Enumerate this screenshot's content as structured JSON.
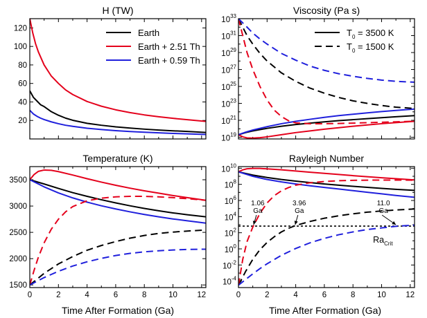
{
  "figure": {
    "xlabel_left": "Time After Formation (Ga)",
    "xlabel_right": "Time After Formation (Ga)"
  },
  "chart_data": [
    {
      "id": "H",
      "type": "line",
      "title": "H (TW)",
      "xlabel": "",
      "ylabel": "",
      "xlim": [
        0,
        12.3
      ],
      "ylim": [
        0,
        130
      ],
      "xticks": [
        0,
        2,
        4,
        6,
        8,
        10,
        12
      ],
      "yticks": [
        20,
        40,
        60,
        80,
        100,
        120
      ],
      "yscale": "linear",
      "grid": false,
      "legend_position": "top-right",
      "legend": [
        {
          "label": "Earth",
          "color": "#000000",
          "dash": "solid"
        },
        {
          "label": "Earth + 2.51 Th",
          "color": "#e4001b",
          "dash": "solid"
        },
        {
          "label": "Earth + 0.59 Th",
          "color": "#1f1fdc",
          "dash": "solid"
        }
      ],
      "series": [
        {
          "name": "Earth",
          "color": "#000000",
          "dash": "solid",
          "x": [
            0,
            0.25,
            0.5,
            0.75,
            1,
            1.5,
            2,
            2.5,
            3,
            4,
            5,
            6,
            7,
            8,
            9,
            10,
            11,
            12.3
          ],
          "y": [
            52,
            45,
            41,
            37,
            35,
            29.5,
            25.6,
            22.5,
            20.2,
            16.9,
            14.8,
            13.1,
            11.8,
            10.6,
            9.6,
            8.8,
            8.1,
            7
          ]
        },
        {
          "name": "Earth + 2.51 Th",
          "color": "#e4001b",
          "dash": "solid",
          "x": [
            0,
            0.2,
            0.4,
            0.6,
            0.8,
            1,
            1.5,
            2,
            2.5,
            3,
            4,
            5,
            6,
            7,
            8,
            9,
            10,
            11,
            12.3
          ],
          "y": [
            130,
            115,
            103,
            94,
            87,
            80,
            68,
            60,
            53,
            48,
            40.5,
            35.4,
            31.5,
            28.5,
            26,
            24,
            22.3,
            20.8,
            19
          ]
        },
        {
          "name": "Earth + 0.59 Th",
          "color": "#1f1fdc",
          "dash": "solid",
          "x": [
            0,
            0.25,
            0.5,
            0.75,
            1,
            1.5,
            2,
            2.5,
            3,
            4,
            5,
            6,
            7,
            8,
            9,
            10,
            11,
            12.3
          ],
          "y": [
            31,
            27,
            24.5,
            22.5,
            21,
            18.5,
            16.5,
            14.8,
            13.6,
            11.6,
            10.2,
            9,
            8,
            7.3,
            6.6,
            6,
            5.5,
            4.9
          ]
        }
      ]
    },
    {
      "id": "Viscosity",
      "type": "line",
      "title": "Viscosity (Pa s)",
      "xlabel": "",
      "ylabel": "",
      "xlim": [
        0,
        12.3
      ],
      "ylim": [
        18.8,
        33
      ],
      "yscale": "log10",
      "xticks": [
        0,
        2,
        4,
        6,
        8,
        10,
        12
      ],
      "yticks": [
        19,
        21,
        23,
        25,
        27,
        29,
        31,
        33
      ],
      "ytick_labels": [
        [
          "10",
          "19"
        ],
        [
          "10",
          "21"
        ],
        [
          "10",
          "23"
        ],
        [
          "10",
          "25"
        ],
        [
          "10",
          "27"
        ],
        [
          "10",
          "29"
        ],
        [
          "10",
          "31"
        ],
        [
          "10",
          "33"
        ]
      ],
      "grid": false,
      "legend_position": "top-right",
      "legend": [
        {
          "label_main": "T",
          "label_sub": "0",
          "label_rest": " = 3500 K",
          "color": "#000000",
          "dash": "solid"
        },
        {
          "label_main": "T",
          "label_sub": "0",
          "label_rest": " = 1500 K",
          "color": "#000000",
          "dash": "dashed"
        }
      ],
      "series": [
        {
          "color": "#000000",
          "dash": "solid",
          "x": [
            0,
            0.5,
            1,
            2,
            3,
            4,
            5,
            6,
            7,
            8,
            9,
            10,
            11,
            12.3
          ],
          "y": [
            19.3,
            19.55,
            19.75,
            20.05,
            20.3,
            20.5,
            20.67,
            20.82,
            20.96,
            21.08,
            21.2,
            21.31,
            21.42,
            21.55
          ]
        },
        {
          "color": "#e4001b",
          "dash": "solid",
          "x": [
            0,
            0.3,
            0.6,
            1,
            1.5,
            2,
            3,
            4,
            5,
            6,
            7,
            8,
            9,
            10,
            11,
            12.3
          ],
          "y": [
            19.3,
            19.05,
            18.92,
            18.9,
            18.95,
            19.05,
            19.3,
            19.55,
            19.75,
            19.95,
            20.13,
            20.3,
            20.45,
            20.6,
            20.73,
            20.88
          ]
        },
        {
          "color": "#1f1fdc",
          "dash": "solid",
          "x": [
            0,
            0.5,
            1,
            2,
            3,
            4,
            5,
            6,
            7,
            8,
            9,
            10,
            11,
            12.3
          ],
          "y": [
            19.3,
            19.6,
            19.85,
            20.25,
            20.6,
            20.88,
            21.12,
            21.35,
            21.55,
            21.72,
            21.88,
            22.03,
            22.17,
            22.33
          ]
        },
        {
          "color": "#000000",
          "dash": "dashed",
          "x": [
            0,
            0.3,
            0.6,
            1,
            1.5,
            2,
            3,
            4,
            5,
            6,
            7,
            8,
            9,
            10,
            11,
            12.3
          ],
          "y": [
            33,
            32,
            31,
            30,
            28.9,
            28,
            26.6,
            25.6,
            24.8,
            24.2,
            23.7,
            23.3,
            23.0,
            22.75,
            22.55,
            22.4
          ]
        },
        {
          "color": "#e4001b",
          "dash": "dashed",
          "x": [
            0,
            0.3,
            0.6,
            1,
            1.5,
            2,
            2.5,
            3,
            3.5,
            4,
            5,
            6,
            7,
            8,
            9,
            10,
            11,
            12.3
          ],
          "y": [
            33,
            31,
            29,
            27,
            25,
            23.4,
            22.2,
            21.45,
            20.95,
            20.7,
            20.6,
            20.6,
            20.63,
            20.67,
            20.72,
            20.77,
            20.82,
            20.9
          ]
        },
        {
          "color": "#1f1fdc",
          "dash": "dashed",
          "x": [
            0,
            0.3,
            0.6,
            1,
            1.5,
            2,
            3,
            4,
            5,
            6,
            7,
            8,
            9,
            10,
            11,
            12.3
          ],
          "y": [
            33,
            32.5,
            32,
            31.3,
            30.6,
            30,
            28.9,
            28.1,
            27.4,
            26.9,
            26.5,
            26.2,
            25.95,
            25.75,
            25.6,
            25.5
          ]
        }
      ]
    },
    {
      "id": "Temperature",
      "type": "line",
      "title": "Temperature (K)",
      "xlabel": "Time After Formation (Ga)",
      "ylabel": "",
      "xlim": [
        0,
        12.3
      ],
      "ylim": [
        1450,
        3750
      ],
      "xticks": [
        0,
        2,
        4,
        6,
        8,
        10,
        12
      ],
      "yticks": [
        1500,
        2000,
        2500,
        3000,
        3500
      ],
      "yscale": "linear",
      "grid": false,
      "series": [
        {
          "color": "#000000",
          "dash": "solid",
          "x": [
            0,
            1,
            2,
            3,
            4,
            5,
            6,
            7,
            8,
            9,
            10,
            11,
            12.3
          ],
          "y": [
            3500,
            3420,
            3335,
            3255,
            3185,
            3120,
            3060,
            3005,
            2955,
            2910,
            2870,
            2835,
            2795
          ]
        },
        {
          "color": "#e4001b",
          "dash": "solid",
          "x": [
            0,
            0.3,
            0.6,
            1,
            1.5,
            2,
            3,
            4,
            5,
            6,
            7,
            8,
            9,
            10,
            11,
            12.3
          ],
          "y": [
            3500,
            3600,
            3660,
            3685,
            3680,
            3655,
            3590,
            3520,
            3455,
            3395,
            3340,
            3290,
            3245,
            3200,
            3160,
            3110
          ]
        },
        {
          "color": "#1f1fdc",
          "dash": "solid",
          "x": [
            0,
            1,
            2,
            3,
            4,
            5,
            6,
            7,
            8,
            9,
            10,
            11,
            12.3
          ],
          "y": [
            3500,
            3365,
            3250,
            3155,
            3075,
            3005,
            2945,
            2890,
            2840,
            2795,
            2755,
            2720,
            2675
          ]
        },
        {
          "color": "#000000",
          "dash": "dashed",
          "x": [
            0,
            0.5,
            1,
            2,
            3,
            4,
            5,
            6,
            7,
            8,
            9,
            10,
            11,
            12.3
          ],
          "y": [
            1500,
            1610,
            1720,
            1900,
            2040,
            2160,
            2250,
            2325,
            2390,
            2440,
            2480,
            2505,
            2525,
            2545
          ]
        },
        {
          "color": "#e4001b",
          "dash": "dashed",
          "x": [
            0,
            0.3,
            0.6,
            1,
            1.5,
            2,
            2.5,
            3,
            4,
            5,
            6,
            7,
            8,
            9,
            10,
            11,
            12.3
          ],
          "y": [
            1500,
            1780,
            2030,
            2300,
            2560,
            2750,
            2890,
            2990,
            3100,
            3150,
            3175,
            3185,
            3185,
            3175,
            3160,
            3140,
            3110
          ]
        },
        {
          "color": "#1f1fdc",
          "dash": "dashed",
          "x": [
            0,
            0.5,
            1,
            2,
            3,
            4,
            5,
            6,
            7,
            8,
            9,
            10,
            11,
            12.3
          ],
          "y": [
            1500,
            1570,
            1640,
            1760,
            1860,
            1940,
            2005,
            2060,
            2100,
            2130,
            2150,
            2165,
            2175,
            2180
          ]
        }
      ]
    },
    {
      "id": "Rayleigh",
      "type": "line",
      "title": "Rayleigh Number",
      "xlabel": "Time After Formation (Ga)",
      "ylabel": "",
      "xlim": [
        0,
        12.3
      ],
      "ylim": [
        -4.8,
        10.2
      ],
      "yscale": "log10",
      "xticks": [
        0,
        2,
        4,
        6,
        8,
        10,
        12
      ],
      "yticks": [
        -4,
        -2,
        0,
        2,
        4,
        6,
        8,
        10
      ],
      "ytick_labels": [
        [
          "10",
          "-4"
        ],
        [
          "10",
          "-2"
        ],
        [
          "10",
          "0"
        ],
        [
          "10",
          "2"
        ],
        [
          "10",
          "4"
        ],
        [
          "10",
          "6"
        ],
        [
          "10",
          "8"
        ],
        [
          "10",
          "10"
        ]
      ],
      "grid": false,
      "critical_value": 2.82,
      "critical_label_main": "Ra",
      "critical_label_sub": "Crit",
      "annotations": [
        {
          "line1": "1.06",
          "line2": "Ga",
          "x": 1.06
        },
        {
          "line1": "3.96",
          "line2": "Ga",
          "x": 3.96
        },
        {
          "line1": "11.0",
          "line2": "Ga",
          "x": 11.0
        }
      ],
      "series": [
        {
          "color": "#000000",
          "dash": "solid",
          "x": [
            0,
            1,
            2,
            3,
            4,
            5,
            6,
            7,
            8,
            9,
            10,
            11,
            12.3
          ],
          "y": [
            9.55,
            9.15,
            8.85,
            8.6,
            8.4,
            8.22,
            8.05,
            7.9,
            7.76,
            7.63,
            7.5,
            7.38,
            7.25
          ]
        },
        {
          "color": "#e4001b",
          "dash": "solid",
          "x": [
            0,
            0.3,
            0.6,
            1,
            1.5,
            2,
            3,
            4,
            5,
            6,
            7,
            8,
            9,
            10,
            11,
            12.3
          ],
          "y": [
            9.55,
            9.8,
            9.93,
            9.98,
            9.97,
            9.92,
            9.8,
            9.65,
            9.5,
            9.36,
            9.22,
            9.08,
            8.95,
            8.82,
            8.7,
            8.55
          ]
        },
        {
          "color": "#1f1fdc",
          "dash": "solid",
          "x": [
            0,
            1,
            2,
            3,
            4,
            5,
            6,
            7,
            8,
            9,
            10,
            11,
            12.3
          ],
          "y": [
            9.55,
            9.0,
            8.6,
            8.3,
            8.05,
            7.82,
            7.62,
            7.42,
            7.22,
            7.02,
            6.82,
            6.62,
            6.4
          ]
        },
        {
          "color": "#000000",
          "dash": "dashed",
          "x": [
            0,
            0.5,
            1,
            1.5,
            2,
            2.5,
            3,
            3.5,
            4,
            5,
            6,
            7,
            8,
            9,
            10,
            11,
            12.3
          ],
          "y": [
            -4.5,
            -2.8,
            -1.3,
            -0.1,
            0.8,
            1.5,
            2.1,
            2.55,
            2.9,
            3.4,
            3.8,
            4.1,
            4.35,
            4.55,
            4.7,
            4.82,
            4.95
          ]
        },
        {
          "color": "#e4001b",
          "dash": "dashed",
          "x": [
            0,
            0.3,
            0.6,
            1,
            1.5,
            2,
            2.5,
            3,
            3.5,
            4,
            5,
            6,
            7,
            8,
            9,
            10,
            11,
            12.3
          ],
          "y": [
            -4.5,
            -1.3,
            0.9,
            2.7,
            4.4,
            5.7,
            6.6,
            7.2,
            7.6,
            7.9,
            8.2,
            8.35,
            8.45,
            8.5,
            8.52,
            8.53,
            8.53,
            8.52
          ]
        },
        {
          "color": "#1f1fdc",
          "dash": "dashed",
          "x": [
            0,
            0.5,
            1,
            1.5,
            2,
            3,
            4,
            5,
            6,
            7,
            8,
            9,
            10,
            11,
            12.3
          ],
          "y": [
            -4.5,
            -3.8,
            -3.1,
            -2.45,
            -1.85,
            -0.8,
            0.05,
            0.75,
            1.3,
            1.75,
            2.1,
            2.4,
            2.6,
            2.8,
            2.95
          ]
        }
      ]
    }
  ]
}
